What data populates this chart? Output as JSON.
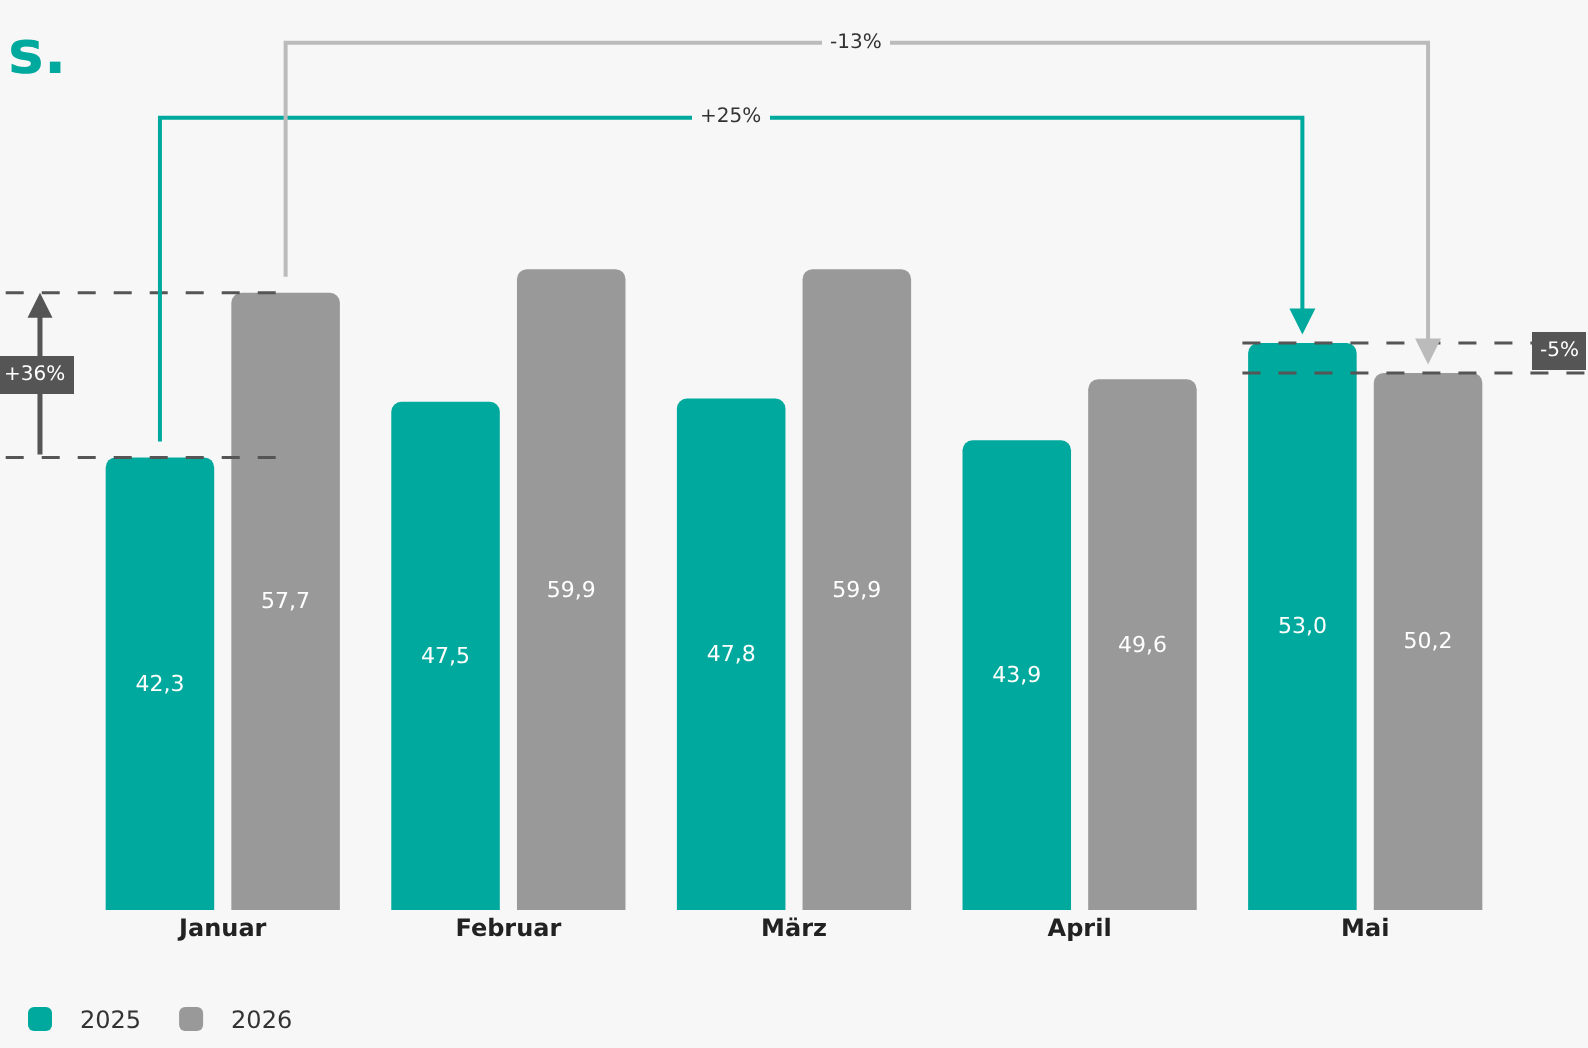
{
  "chart_data": {
    "type": "bar",
    "title": "s.",
    "categories": [
      "Januar",
      "Februar",
      "März",
      "April",
      "Mai"
    ],
    "series": [
      {
        "name": "2025",
        "color": "#00a99d",
        "values": [
          42.3,
          47.5,
          47.8,
          43.9,
          53.0
        ],
        "value_labels": [
          "42,3",
          "47,5",
          "47,8",
          "43,9",
          "53,0"
        ]
      },
      {
        "name": "2026",
        "color": "#999999",
        "values": [
          57.7,
          59.9,
          59.9,
          49.6,
          50.2
        ],
        "value_labels": [
          "57,7",
          "59,9",
          "59,9",
          "49,6",
          "50,2"
        ]
      }
    ],
    "ref_lines": [
      {
        "axis": "y",
        "value": 42.3,
        "color": "#555555",
        "line_style": "dashed"
      },
      {
        "axis": "y",
        "value": 57.7,
        "color": "#555555",
        "line_style": "dashed"
      },
      {
        "axis": "y",
        "value": 53.0,
        "color": "#555555",
        "line_style": "dashed"
      },
      {
        "axis": "y",
        "value": 50.2,
        "color": "#555555",
        "line_style": "dashed"
      }
    ],
    "grid": false,
    "legend": "bottom left",
    "annotations": [
      "+36%",
      "+25%",
      "-13%",
      "-5%"
    ]
  }
}
